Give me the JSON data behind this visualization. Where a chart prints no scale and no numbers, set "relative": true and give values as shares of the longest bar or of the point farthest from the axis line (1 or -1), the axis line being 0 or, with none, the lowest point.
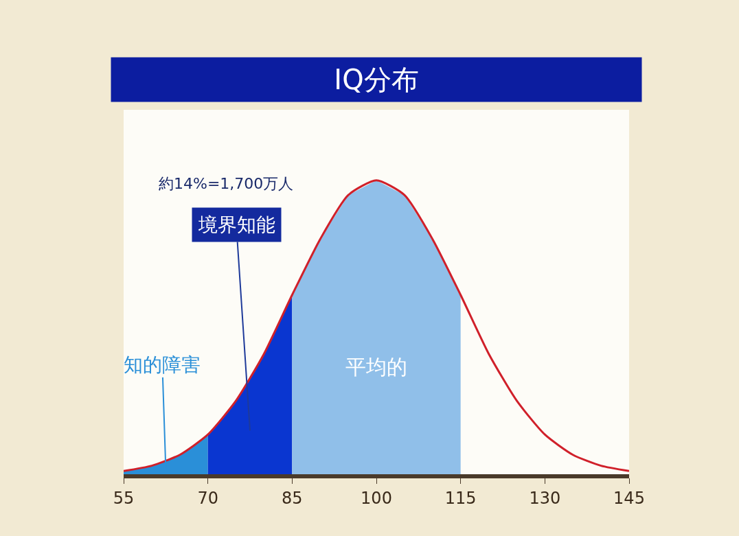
{
  "chart_data": {
    "type": "area",
    "title": "IQ分布",
    "relative": true,
    "legend": false,
    "grid": false,
    "xlim": [
      55,
      145
    ],
    "xticks": [
      55,
      70,
      85,
      100,
      115,
      130,
      145
    ],
    "series": [
      {
        "name": "知的障害",
        "color": "#2a8fd8",
        "x": [
          55,
          60,
          65,
          70
        ],
        "values": [
          0.011,
          0.029,
          0.066,
          0.135
        ]
      },
      {
        "name": "境界知能",
        "color": "#0a36d0",
        "x": [
          70,
          75,
          80,
          85
        ],
        "values": [
          0.135,
          0.25,
          0.41,
          0.61
        ]
      },
      {
        "name": "平均的",
        "color": "#90bfe9",
        "x": [
          85,
          90,
          95,
          100,
          105,
          110,
          115
        ],
        "values": [
          0.61,
          0.8,
          0.95,
          1,
          0.95,
          0.8,
          0.61
        ]
      },
      {
        "type": "line",
        "color": "#d0202a",
        "x": [
          55,
          60,
          65,
          70,
          75,
          80,
          85,
          90,
          95,
          100,
          105,
          110,
          115,
          120,
          125,
          130,
          135,
          140,
          145
        ],
        "values": [
          0.011,
          0.029,
          0.066,
          0.135,
          0.25,
          0.41,
          0.61,
          0.8,
          0.95,
          1,
          0.95,
          0.8,
          0.61,
          0.41,
          0.25,
          0.135,
          0.066,
          0.029,
          0.011
        ]
      }
    ],
    "annotations": [
      "約14%=1,700万人"
    ]
  }
}
